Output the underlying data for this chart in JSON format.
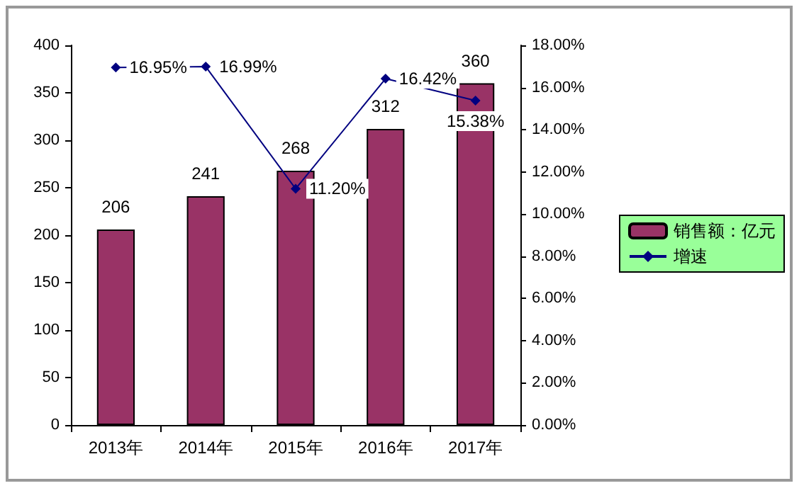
{
  "chart_data": {
    "type": "bar",
    "categories": [
      "2013年",
      "2014年",
      "2015年",
      "2016年",
      "2017年"
    ],
    "series": [
      {
        "name": "销售额：亿元",
        "color": "#993366",
        "values": [
          206,
          241,
          268,
          312,
          360
        ],
        "value_labels": [
          "206",
          "241",
          "268",
          "312",
          "360"
        ]
      },
      {
        "name": "增速",
        "type": "line",
        "axis": "y2",
        "color": "#000080",
        "values": [
          16.95,
          16.99,
          11.2,
          16.42,
          15.38
        ],
        "value_labels": [
          "16.95%",
          "16.99%",
          "11.20%",
          "16.42%",
          "15.38%"
        ]
      }
    ],
    "ylim": [
      0,
      400
    ],
    "yticks": [
      0,
      50,
      100,
      150,
      200,
      250,
      300,
      350,
      400
    ],
    "y2lim": [
      0,
      18
    ],
    "y2ticks": [
      {
        "value": 0,
        "label": "0.00%"
      },
      {
        "value": 2,
        "label": "2.00%"
      },
      {
        "value": 4,
        "label": "4.00%"
      },
      {
        "value": 6,
        "label": "6.00%"
      },
      {
        "value": 8,
        "label": "8.00%"
      },
      {
        "value": 10,
        "label": "10.00%"
      },
      {
        "value": 12,
        "label": "12.00%"
      },
      {
        "value": 14,
        "label": "14.00%"
      },
      {
        "value": 16,
        "label": "16.00%"
      },
      {
        "value": 18,
        "label": "18.00%"
      }
    ],
    "legend": "right",
    "marker": "diamond",
    "grid": false
  }
}
